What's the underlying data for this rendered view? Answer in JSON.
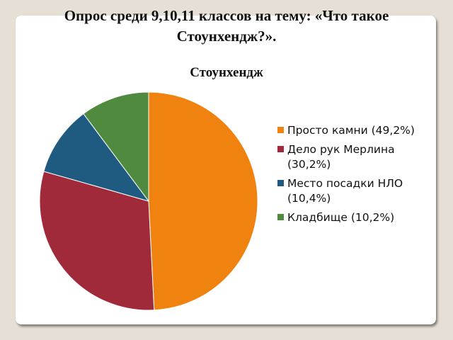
{
  "slide": {
    "title_line1": "Опрос среди 9,10,11 классов на тему: «Что такое",
    "title_line2": "Стоунхендж?»."
  },
  "chart_data": {
    "type": "pie",
    "title": "Стоунхендж",
    "legend_position": "right",
    "slices": [
      {
        "label": "Просто камни (49,2%)",
        "value": 49.2,
        "color": "#f0820f"
      },
      {
        "label": "Дело рук Мерлина (30,2%)",
        "value": 30.2,
        "color": "#a12a3a"
      },
      {
        "label": "Место посадки НЛО (10,4%)",
        "value": 10.4,
        "color": "#1f5b80"
      },
      {
        "label": "Кладбище (10,2%)",
        "value": 10.2,
        "color": "#508a3f"
      }
    ]
  }
}
